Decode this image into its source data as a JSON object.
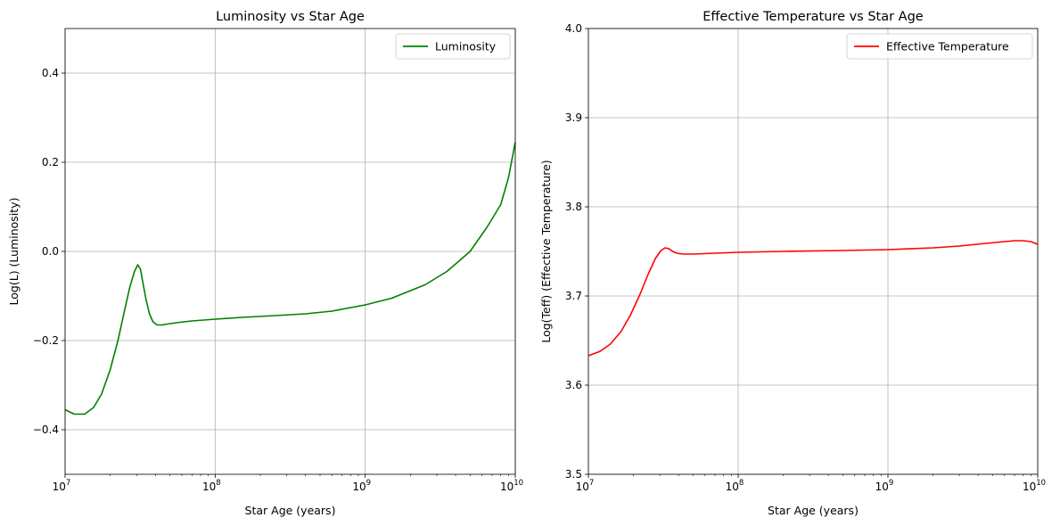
{
  "chart_data": [
    {
      "type": "line",
      "title": "Luminosity vs Star Age",
      "xlabel": "Star Age (years)",
      "ylabel": "Log(L) (Luminosity)",
      "xscale": "log",
      "xlim": [
        10000000,
        10000000000
      ],
      "ylim": [
        -0.5,
        0.5
      ],
      "grid": true,
      "legend_position": "upper right",
      "xticks": [
        {
          "value": 10000000,
          "base": "10",
          "exp": "7"
        },
        {
          "value": 100000000,
          "base": "10",
          "exp": "8"
        },
        {
          "value": 1000000000,
          "base": "10",
          "exp": "9"
        },
        {
          "value": 10000000000,
          "base": "10",
          "exp": "10"
        }
      ],
      "yticks": [
        {
          "value": -0.4,
          "label": "−0.4"
        },
        {
          "value": -0.2,
          "label": "−0.2"
        },
        {
          "value": 0.0,
          "label": "0.0"
        },
        {
          "value": 0.2,
          "label": "0.2"
        },
        {
          "value": 0.4,
          "label": "0.4"
        }
      ],
      "series": [
        {
          "name": "Luminosity",
          "color": "#008000",
          "x": [
            10000000,
            11500000,
            13500000,
            15500000,
            17500000,
            20000000,
            22500000,
            25000000,
            27000000,
            29000000,
            30500000,
            31800000,
            33000000,
            34500000,
            36500000,
            38500000,
            41000000,
            44000000,
            48000000,
            55000000,
            70000000,
            100000000,
            150000000,
            250000000,
            400000000,
            600000000,
            1000000000,
            1500000000,
            2500000000,
            3500000000,
            5000000000,
            6500000000,
            8000000000,
            9000000000,
            10000000000
          ],
          "y": [
            -0.355,
            -0.365,
            -0.365,
            -0.35,
            -0.32,
            -0.265,
            -0.2,
            -0.13,
            -0.08,
            -0.045,
            -0.03,
            -0.04,
            -0.07,
            -0.105,
            -0.14,
            -0.158,
            -0.165,
            -0.165,
            -0.163,
            -0.16,
            -0.156,
            -0.152,
            -0.148,
            -0.144,
            -0.14,
            -0.134,
            -0.12,
            -0.105,
            -0.075,
            -0.045,
            0.0,
            0.055,
            0.105,
            0.165,
            0.245
          ]
        }
      ]
    },
    {
      "type": "line",
      "title": "Effective Temperature vs Star Age",
      "xlabel": "Star Age (years)",
      "ylabel": "Log(Teff) (Effective Temperature)",
      "xscale": "log",
      "xlim": [
        10000000,
        10000000000
      ],
      "ylim": [
        3.5,
        4.0
      ],
      "grid": true,
      "legend_position": "upper right",
      "xticks": [
        {
          "value": 10000000,
          "base": "10",
          "exp": "7"
        },
        {
          "value": 100000000,
          "base": "10",
          "exp": "8"
        },
        {
          "value": 1000000000,
          "base": "10",
          "exp": "9"
        },
        {
          "value": 10000000000,
          "base": "10",
          "exp": "10"
        }
      ],
      "yticks": [
        {
          "value": 3.5,
          "label": "3.5"
        },
        {
          "value": 3.6,
          "label": "3.6"
        },
        {
          "value": 3.7,
          "label": "3.7"
        },
        {
          "value": 3.8,
          "label": "3.8"
        },
        {
          "value": 3.9,
          "label": "3.9"
        },
        {
          "value": 4.0,
          "label": "4.0"
        }
      ],
      "series": [
        {
          "name": "Effective Temperature",
          "color": "#ff0000",
          "x": [
            10000000,
            12000000,
            14000000,
            16500000,
            19000000,
            22000000,
            25000000,
            28000000,
            30500000,
            32500000,
            34500000,
            36500000,
            39000000,
            43000000,
            50000000,
            70000000,
            100000000,
            200000000,
            500000000,
            1000000000,
            2000000000,
            3000000000,
            4500000000,
            6000000000,
            7000000000,
            8000000000,
            9000000000,
            10000000000
          ],
          "y": [
            3.633,
            3.638,
            3.646,
            3.66,
            3.678,
            3.701,
            3.724,
            3.742,
            3.751,
            3.754,
            3.753,
            3.75,
            3.748,
            3.747,
            3.747,
            3.748,
            3.749,
            3.75,
            3.751,
            3.752,
            3.754,
            3.756,
            3.759,
            3.761,
            3.762,
            3.762,
            3.761,
            3.758
          ]
        }
      ]
    }
  ]
}
